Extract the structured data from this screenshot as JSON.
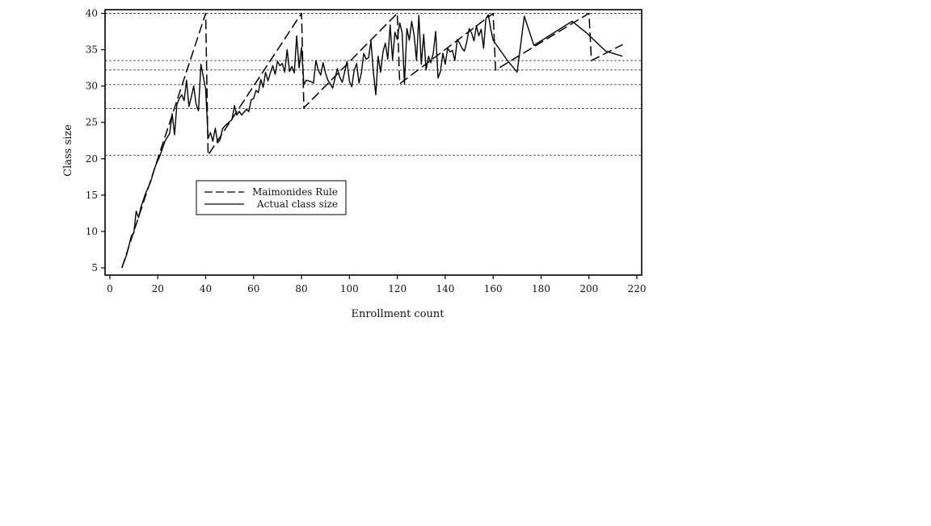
{
  "chart_data": {
    "type": "line",
    "title": "",
    "xlabel": "Enrollment count",
    "ylabel": "Class size",
    "xlim": [
      -2,
      222
    ],
    "ylim": [
      4,
      40.5
    ],
    "x_ticks": [
      0,
      20,
      40,
      60,
      80,
      100,
      120,
      140,
      160,
      180,
      200,
      220
    ],
    "y_ticks": [
      5,
      10,
      15,
      20,
      25,
      30,
      35,
      40
    ],
    "grid": false,
    "legend_position": "center-left",
    "reference_lines": [
      40,
      33.5,
      32.2,
      30.2,
      26.9,
      20.5
    ],
    "series": [
      {
        "name": "Maimonides Rule",
        "style": "dashed",
        "color": "#000000",
        "points": [
          [
            5,
            5
          ],
          [
            40,
            40
          ],
          [
            41,
            20.5
          ],
          [
            80,
            40
          ],
          [
            81,
            27
          ],
          [
            120,
            40
          ],
          [
            121,
            30.3
          ],
          [
            160,
            40
          ],
          [
            161,
            32.2
          ],
          [
            200,
            40
          ],
          [
            201,
            33.5
          ],
          [
            214,
            35.7
          ]
        ]
      },
      {
        "name": "Actual class size",
        "style": "solid",
        "color": "#000000",
        "points": [
          [
            5,
            5
          ],
          [
            7,
            6.8
          ],
          [
            9,
            9.4
          ],
          [
            10,
            9.8
          ],
          [
            11,
            12.8
          ],
          [
            12,
            11.9
          ],
          [
            13,
            13.4
          ],
          [
            15,
            15.3
          ],
          [
            17,
            16.8
          ],
          [
            19,
            19
          ],
          [
            21,
            20.5
          ],
          [
            23,
            22.4
          ],
          [
            25,
            23.5
          ],
          [
            26,
            26.2
          ],
          [
            27,
            23.3
          ],
          [
            28,
            27.5
          ],
          [
            29,
            28.3
          ],
          [
            30,
            28.8
          ],
          [
            31,
            28
          ],
          [
            32,
            30.8
          ],
          [
            33,
            27.2
          ],
          [
            34,
            28.5
          ],
          [
            35,
            30
          ],
          [
            36,
            27.5
          ],
          [
            37,
            26.6
          ],
          [
            38,
            33
          ],
          [
            39,
            31.3
          ],
          [
            40,
            29.6
          ],
          [
            41,
            22.8
          ],
          [
            42,
            23.6
          ],
          [
            43,
            22.4
          ],
          [
            44,
            24.2
          ],
          [
            45,
            22.2
          ],
          [
            46,
            22.6
          ],
          [
            47,
            24.1
          ],
          [
            48,
            24.5
          ],
          [
            50,
            25.1
          ],
          [
            51,
            25.4
          ],
          [
            52,
            27.3
          ],
          [
            53,
            26
          ],
          [
            54,
            26.5
          ],
          [
            55,
            26
          ],
          [
            57,
            26.8
          ],
          [
            58,
            26.5
          ],
          [
            59,
            28.1
          ],
          [
            60,
            28.3
          ],
          [
            61,
            29.4
          ],
          [
            62,
            29.1
          ],
          [
            63,
            30.9
          ],
          [
            64,
            29.8
          ],
          [
            65,
            31.9
          ],
          [
            66,
            30.7
          ],
          [
            67,
            31.8
          ],
          [
            68,
            32.8
          ],
          [
            69,
            31.6
          ],
          [
            70,
            33.4
          ],
          [
            71,
            32.8
          ],
          [
            72,
            33.1
          ],
          [
            73,
            31.9
          ],
          [
            74,
            35
          ],
          [
            75,
            32
          ],
          [
            76,
            32.7
          ],
          [
            77,
            31.8
          ],
          [
            78,
            36.9
          ],
          [
            79,
            32.5
          ],
          [
            80,
            35.3
          ],
          [
            81,
            30.2
          ],
          [
            82,
            30.8
          ],
          [
            84,
            30.6
          ],
          [
            85,
            30.4
          ],
          [
            86,
            33.5
          ],
          [
            87,
            32.2
          ],
          [
            88,
            31.5
          ],
          [
            89,
            33.2
          ],
          [
            90,
            31.8
          ],
          [
            91,
            30.8
          ],
          [
            92,
            30.3
          ],
          [
            93,
            29.7
          ],
          [
            94,
            31.1
          ],
          [
            95,
            32.4
          ],
          [
            96,
            31.2
          ],
          [
            97,
            30.5
          ],
          [
            98,
            31.9
          ],
          [
            99,
            33.4
          ],
          [
            100,
            30.6
          ],
          [
            101,
            29.9
          ],
          [
            102,
            32.2
          ],
          [
            103,
            33.1
          ],
          [
            104,
            30.4
          ],
          [
            105,
            31.8
          ],
          [
            106,
            34.5
          ],
          [
            107,
            33.7
          ],
          [
            108,
            33.9
          ],
          [
            109,
            36.2
          ],
          [
            110,
            31.9
          ],
          [
            111,
            28.8
          ],
          [
            112,
            34.1
          ],
          [
            113,
            31.9
          ],
          [
            114,
            34.7
          ],
          [
            115,
            35.9
          ],
          [
            116,
            33.7
          ],
          [
            117,
            38.4
          ],
          [
            118,
            33.6
          ],
          [
            119,
            37.4
          ],
          [
            120,
            36.4
          ],
          [
            121,
            38.7
          ],
          [
            122,
            37.3
          ],
          [
            123,
            30.3
          ],
          [
            124,
            37.9
          ],
          [
            125,
            36.3
          ],
          [
            126,
            38.9
          ],
          [
            127,
            37
          ],
          [
            128,
            33.5
          ],
          [
            129,
            39.7
          ],
          [
            130,
            33
          ],
          [
            131,
            37.1
          ],
          [
            132,
            32.2
          ],
          [
            133,
            34.1
          ],
          [
            134,
            33.2
          ],
          [
            135,
            34.5
          ],
          [
            136,
            37.5
          ],
          [
            137,
            31.1
          ],
          [
            138,
            32
          ],
          [
            139,
            34.5
          ],
          [
            140,
            33
          ],
          [
            141,
            35.2
          ],
          [
            142,
            34.7
          ],
          [
            143,
            34.9
          ],
          [
            144,
            33.5
          ],
          [
            145,
            36.4
          ],
          [
            146,
            35.9
          ],
          [
            147,
            35.2
          ],
          [
            148,
            34.8
          ],
          [
            149,
            36.1
          ],
          [
            150,
            37.9
          ],
          [
            151,
            37.3
          ],
          [
            152,
            36.2
          ],
          [
            153,
            38.3
          ],
          [
            154,
            36.9
          ],
          [
            155,
            37.8
          ],
          [
            156,
            35.2
          ],
          [
            157,
            39.3
          ],
          [
            158,
            39.8
          ],
          [
            159,
            37.8
          ],
          [
            160,
            36.3
          ],
          [
            166,
            33.5
          ],
          [
            170,
            31.9
          ],
          [
            173,
            39.6
          ],
          [
            177,
            35.6
          ],
          [
            193,
            38.9
          ],
          [
            199,
            37.3
          ],
          [
            207,
            34.8
          ],
          [
            214,
            34.1
          ]
        ]
      }
    ]
  }
}
